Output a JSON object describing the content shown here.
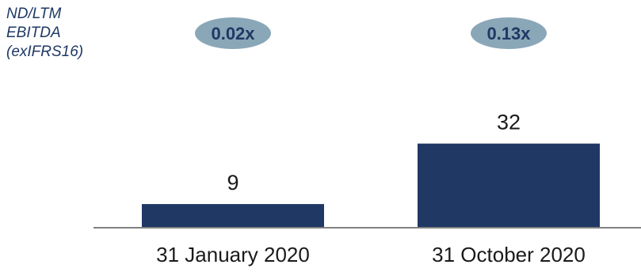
{
  "chart_data": {
    "type": "bar",
    "title": "ND/LTM\nEBITDA\n(exIFRS16)",
    "categories": [
      "31 January 2020",
      "31 October 2020"
    ],
    "values": [
      9,
      32
    ],
    "data_labels": [
      "9",
      "32"
    ],
    "ratio_labels": [
      "0.02x",
      "0.13x"
    ],
    "xlabel": "",
    "ylabel": "",
    "ylim": [
      0,
      40
    ],
    "grid": false,
    "legend": "none"
  },
  "colors": {
    "bar": "#1f3864",
    "pill": "#8aa7b8",
    "axis": "#808080",
    "title": "#1f3864"
  }
}
